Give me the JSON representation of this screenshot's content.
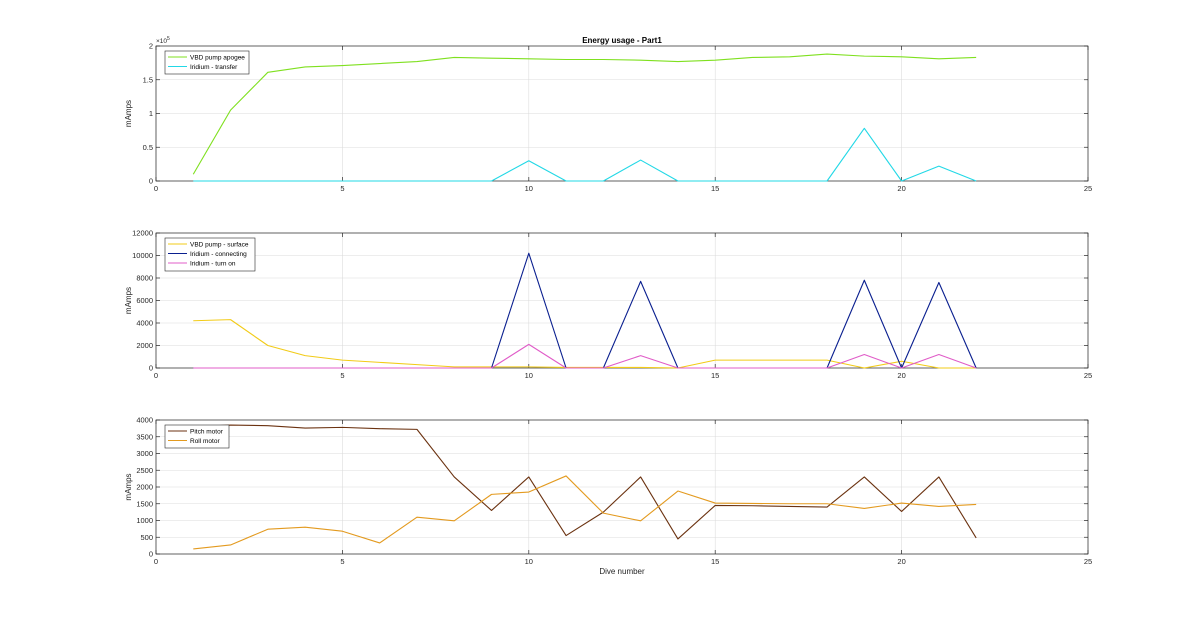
{
  "colors": {
    "vbd_apogee": "#7FE01F",
    "iridium_transfer": "#22D8E6",
    "vbd_surface": "#F2CB17",
    "iridium_connecting": "#0A1F8F",
    "iridium_turnon": "#E05CC8",
    "pitch_motor": "#6B3210",
    "roll_motor": "#E39A1F",
    "grid": "#DCDCDC",
    "axes": "#262626"
  },
  "chart_data": [
    {
      "type": "line",
      "title": "Energy usage - Part1",
      "xlabel": "",
      "ylabel": "mAmps",
      "xlim": [
        0,
        25
      ],
      "ylim": [
        0,
        200000
      ],
      "xticks": [
        0,
        5,
        10,
        15,
        20,
        25
      ],
      "yticks": [
        0,
        50000,
        100000,
        150000,
        200000
      ],
      "ytick_labels": [
        "0",
        "0.5",
        "1",
        "1.5",
        "2"
      ],
      "y_exponent": "×10",
      "y_exponent_power": "5",
      "grid": true,
      "legend_location": "top-left",
      "x": [
        1,
        2,
        3,
        4,
        5,
        6,
        7,
        8,
        9,
        10,
        11,
        12,
        13,
        14,
        15,
        16,
        17,
        18,
        19,
        20,
        21,
        22
      ],
      "series": [
        {
          "name": "VBD pump apogee",
          "color_key": "vbd_apogee",
          "values": [
            10000,
            105000,
            161000,
            169000,
            171000,
            174000,
            177000,
            183000,
            182000,
            181000,
            180000,
            180000,
            179000,
            177000,
            179000,
            183000,
            184000,
            188000,
            185000,
            184000,
            181000,
            183000
          ]
        },
        {
          "name": "Iridium - transfer",
          "color_key": "iridium_transfer",
          "values": [
            0,
            0,
            0,
            0,
            0,
            0,
            0,
            0,
            0,
            30000,
            0,
            0,
            31000,
            0,
            0,
            0,
            0,
            0,
            78000,
            0,
            22000,
            0
          ]
        }
      ]
    },
    {
      "type": "line",
      "title": "",
      "xlabel": "",
      "ylabel": "mAmps",
      "xlim": [
        0,
        25
      ],
      "ylim": [
        0,
        12000
      ],
      "xticks": [
        0,
        5,
        10,
        15,
        20,
        25
      ],
      "yticks": [
        0,
        2000,
        4000,
        6000,
        8000,
        10000,
        12000
      ],
      "ytick_labels": [
        "0",
        "2000",
        "4000",
        "6000",
        "8000",
        "10000",
        "12000"
      ],
      "grid": true,
      "legend_location": "top-left",
      "x": [
        1,
        2,
        3,
        4,
        5,
        6,
        7,
        8,
        9,
        10,
        11,
        12,
        13,
        14,
        15,
        16,
        17,
        18,
        19,
        20,
        21,
        22
      ],
      "series": [
        {
          "name": "VBD pump - surface",
          "color_key": "vbd_surface",
          "values": [
            4200,
            4300,
            2000,
            1100,
            700,
            500,
            300,
            100,
            100,
            100,
            50,
            50,
            50,
            0,
            700,
            700,
            700,
            700,
            0,
            600,
            0,
            0
          ]
        },
        {
          "name": "Iridium - connecting",
          "color_key": "iridium_connecting",
          "values": [
            0,
            0,
            0,
            0,
            0,
            0,
            0,
            0,
            0,
            10200,
            0,
            0,
            7700,
            0,
            0,
            0,
            0,
            0,
            7800,
            0,
            7600,
            0
          ]
        },
        {
          "name": "Iridium - turn on",
          "color_key": "iridium_turnon",
          "values": [
            0,
            0,
            0,
            0,
            0,
            0,
            0,
            0,
            0,
            2100,
            0,
            0,
            1100,
            0,
            0,
            0,
            0,
            0,
            1200,
            0,
            1200,
            0
          ]
        }
      ]
    },
    {
      "type": "line",
      "title": "",
      "xlabel": "Dive number",
      "ylabel": "mAmps",
      "xlim": [
        0,
        25
      ],
      "ylim": [
        0,
        4000
      ],
      "xticks": [
        0,
        5,
        10,
        15,
        20,
        25
      ],
      "yticks": [
        0,
        500,
        1000,
        1500,
        2000,
        2500,
        3000,
        3500,
        4000
      ],
      "ytick_labels": [
        "0",
        "500",
        "1000",
        "1500",
        "2000",
        "2500",
        "3000",
        "3500",
        "4000"
      ],
      "grid": true,
      "legend_location": "top-left",
      "x": [
        1,
        2,
        3,
        4,
        5,
        6,
        7,
        8,
        9,
        10,
        11,
        12,
        13,
        14,
        15,
        16,
        17,
        18,
        19,
        20,
        21,
        22
      ],
      "series": [
        {
          "name": "Pitch motor",
          "color_key": "pitch_motor",
          "values": [
            3800,
            3850,
            3830,
            3760,
            3780,
            3740,
            3720,
            2300,
            1300,
            2300,
            550,
            1250,
            2300,
            450,
            1450,
            1440,
            1420,
            1400,
            2300,
            1270,
            2300,
            480
          ]
        },
        {
          "name": "Roll motor",
          "color_key": "roll_motor",
          "values": [
            150,
            270,
            740,
            800,
            680,
            330,
            1100,
            990,
            1780,
            1850,
            2330,
            1220,
            990,
            1880,
            1520,
            1510,
            1500,
            1500,
            1360,
            1520,
            1420,
            1480
          ]
        }
      ]
    }
  ]
}
